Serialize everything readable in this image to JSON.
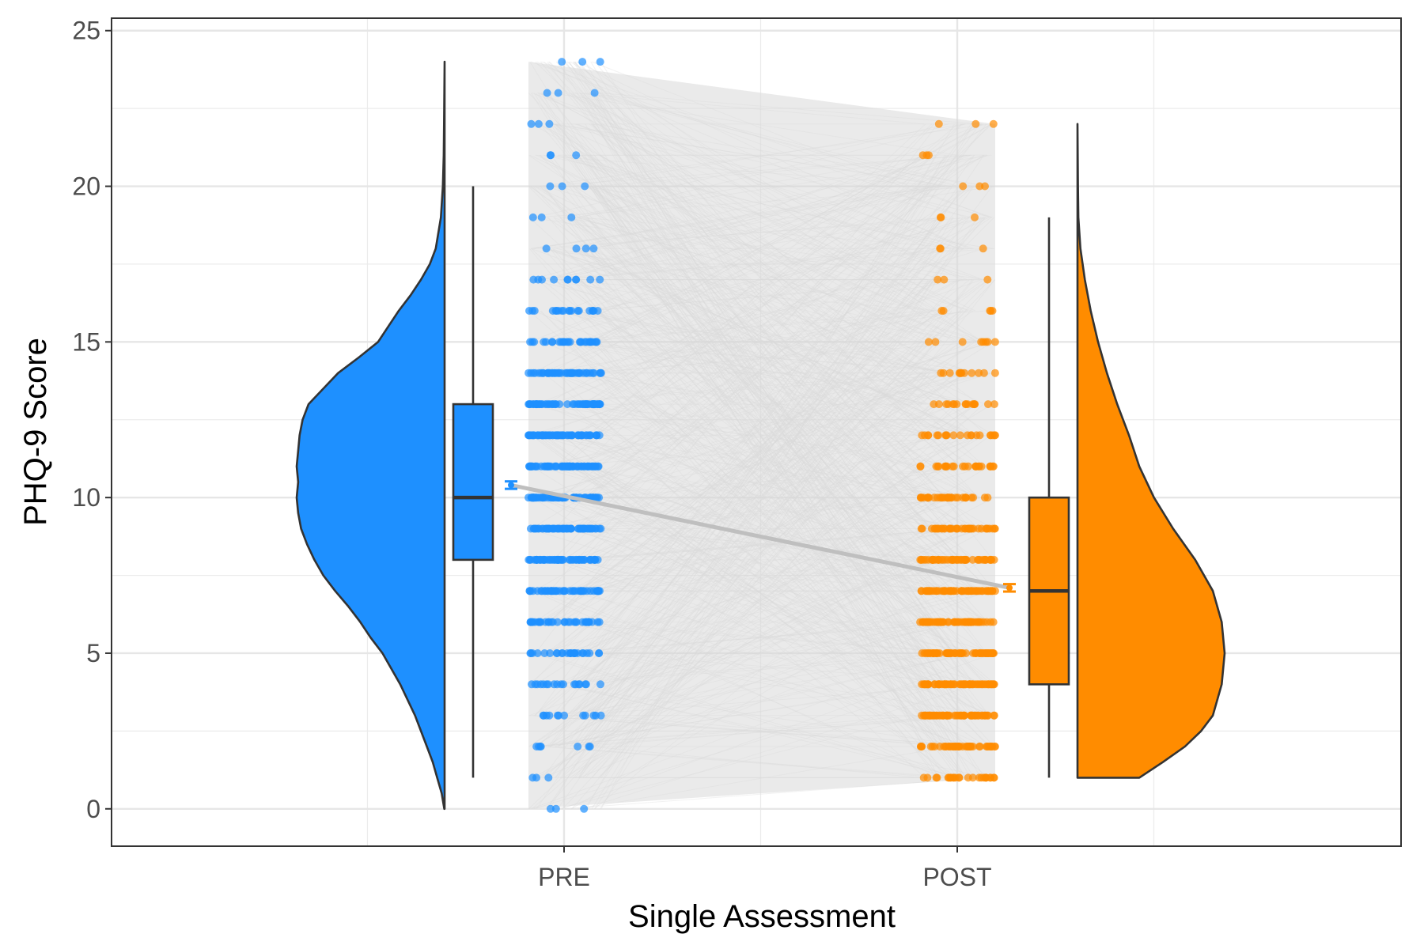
{
  "chart_data": {
    "type": "raincloud",
    "title": "",
    "xlabel": "Single Assessment",
    "ylabel": "PHQ-9 Score",
    "ylim": [
      -1.2,
      25.4
    ],
    "yticks": [
      0,
      5,
      10,
      15,
      20,
      25
    ],
    "y_tick_labels": [
      "0",
      "5",
      "10",
      "15",
      "20",
      "25"
    ],
    "categories": [
      "PRE",
      "POST"
    ],
    "grid": true,
    "legend": "none",
    "connecting_lines": "grey paired-subject lines between PRE and POST",
    "mean_line": {
      "from": 10.4,
      "to": 7.1,
      "color": "#bfbfbf"
    },
    "groups": [
      {
        "name": "PRE",
        "color": "#1e90ff",
        "box": {
          "min": 1,
          "q1": 8,
          "median": 10,
          "q3": 13,
          "max": 20
        },
        "mean": 10.4,
        "mean_ci": [
          10.28,
          10.52
        ],
        "density": [
          [
            0,
            0.002
          ],
          [
            0.5,
            0.02
          ],
          [
            1,
            0.05
          ],
          [
            1.5,
            0.08
          ],
          [
            2,
            0.12
          ],
          [
            3,
            0.2
          ],
          [
            4,
            0.3
          ],
          [
            5,
            0.42
          ],
          [
            5.5,
            0.5
          ],
          [
            6,
            0.57
          ],
          [
            6.5,
            0.65
          ],
          [
            7,
            0.74
          ],
          [
            7.5,
            0.82
          ],
          [
            8,
            0.88
          ],
          [
            8.5,
            0.93
          ],
          [
            9,
            0.97
          ],
          [
            9.5,
            0.99
          ],
          [
            10,
            1.0
          ],
          [
            10.5,
            0.99
          ],
          [
            11,
            1.0
          ],
          [
            11.5,
            0.99
          ],
          [
            12,
            0.98
          ],
          [
            12.5,
            0.96
          ],
          [
            13,
            0.92
          ],
          [
            13.5,
            0.82
          ],
          [
            14,
            0.72
          ],
          [
            14.5,
            0.58
          ],
          [
            15,
            0.45
          ],
          [
            15.5,
            0.38
          ],
          [
            16,
            0.31
          ],
          [
            16.5,
            0.23
          ],
          [
            17,
            0.16
          ],
          [
            17.5,
            0.1
          ],
          [
            18,
            0.06
          ],
          [
            19,
            0.025
          ],
          [
            20,
            0.012
          ],
          [
            21,
            0.006
          ],
          [
            22,
            0.004
          ],
          [
            24,
            0.0
          ]
        ],
        "score_values": [
          0,
          1,
          2,
          3,
          4,
          5,
          6,
          7,
          8,
          9,
          10,
          11,
          12,
          13,
          14,
          15,
          16,
          17,
          18,
          19,
          20,
          21,
          22,
          23,
          24
        ]
      },
      {
        "name": "POST",
        "color": "#ff8c00",
        "box": {
          "min": 1,
          "q1": 4,
          "median": 7,
          "q3": 10,
          "max": 19
        },
        "mean": 7.1,
        "mean_ci": [
          6.98,
          7.22
        ],
        "density": [
          [
            1,
            0.42
          ],
          [
            1.5,
            0.58
          ],
          [
            2,
            0.73
          ],
          [
            2.5,
            0.84
          ],
          [
            3,
            0.92
          ],
          [
            4,
            0.98
          ],
          [
            5,
            1.0
          ],
          [
            6,
            0.98
          ],
          [
            7,
            0.92
          ],
          [
            8,
            0.8
          ],
          [
            9,
            0.65
          ],
          [
            10,
            0.52
          ],
          [
            11,
            0.42
          ],
          [
            12,
            0.35
          ],
          [
            13,
            0.27
          ],
          [
            14,
            0.2
          ],
          [
            15,
            0.14
          ],
          [
            16,
            0.09
          ],
          [
            17,
            0.05
          ],
          [
            18,
            0.02
          ],
          [
            19,
            0.006
          ],
          [
            20,
            0.003
          ],
          [
            22,
            0.0
          ]
        ],
        "score_values": [
          1,
          2,
          3,
          4,
          5,
          6,
          7,
          8,
          9,
          10,
          11,
          12,
          13,
          14,
          15,
          16,
          17,
          18,
          19,
          20,
          21,
          22
        ]
      }
    ]
  }
}
